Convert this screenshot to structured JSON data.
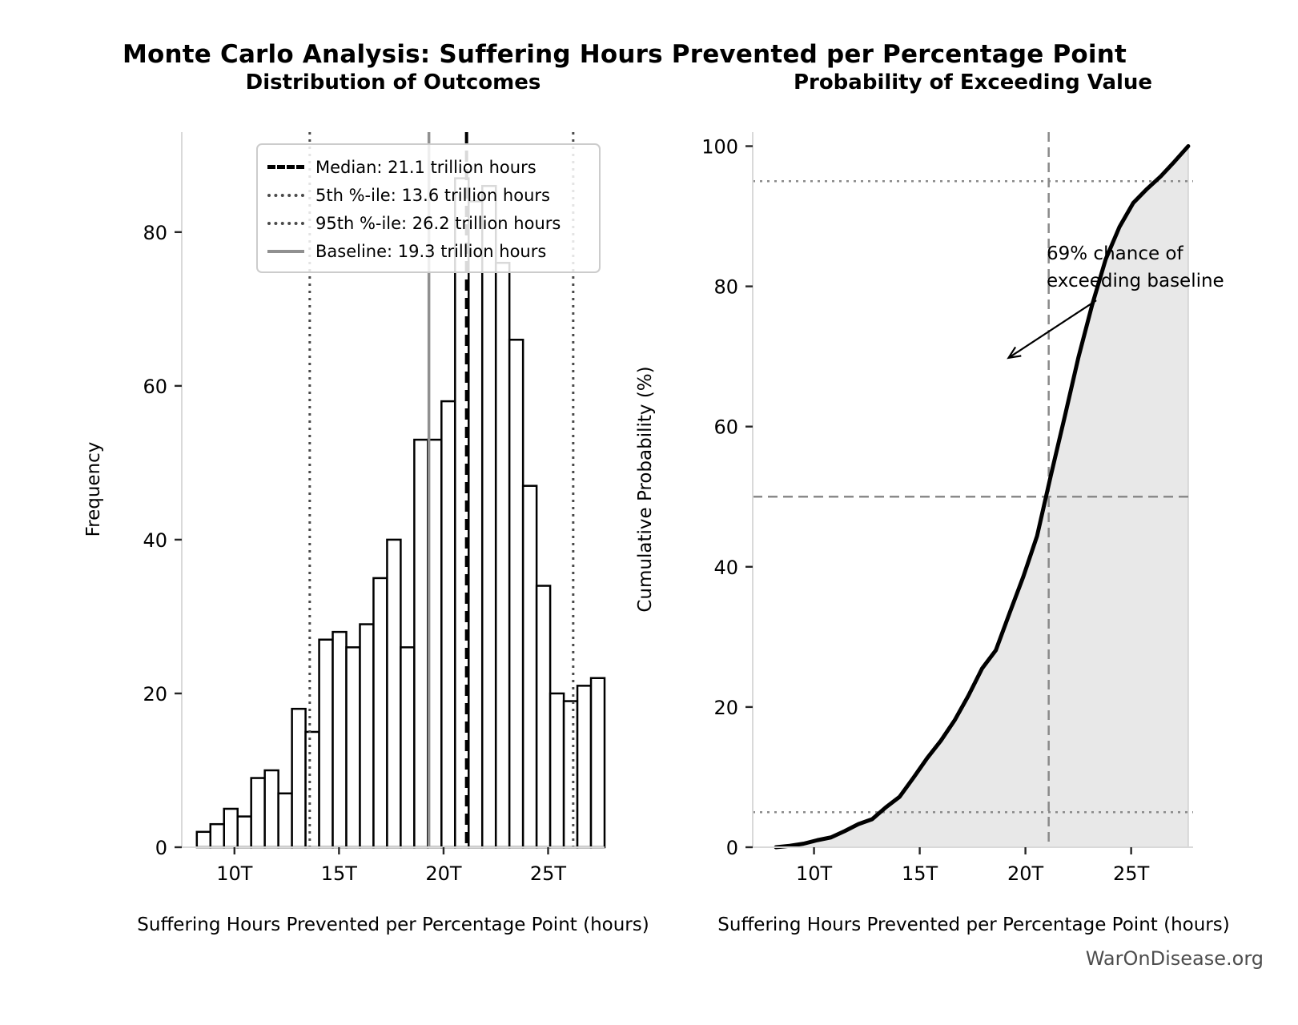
{
  "suptitle": "Monte Carlo Analysis: Suffering Hours Prevented per Percentage Point",
  "watermark": "WarOnDisease.org",
  "chart_data": [
    {
      "type": "bar",
      "title": "Distribution of Outcomes",
      "xlabel": "Suffering Hours Prevented per Percentage Point (hours)",
      "ylabel": "Frequency",
      "unit": "trillion hours",
      "bin_start": 8.2,
      "bin_width": 0.65,
      "values": [
        2,
        3,
        5,
        4,
        9,
        10,
        7,
        18,
        15,
        27,
        28,
        26,
        29,
        35,
        40,
        26,
        53,
        53,
        58,
        87,
        84,
        86,
        76,
        66,
        47,
        34,
        20,
        19,
        21,
        22
      ],
      "xlim": [
        7.48,
        27.7
      ],
      "ylim": [
        0,
        93
      ],
      "xticks": [
        10,
        15,
        20,
        25
      ],
      "xtick_labels": [
        "10T",
        "15T",
        "20T",
        "25T"
      ],
      "yticks": [
        0,
        20,
        40,
        60,
        80
      ],
      "grid": false,
      "legend_position": "upper left",
      "ref_lines": [
        {
          "name": "median",
          "value": 21.1,
          "style": "dashed-black",
          "legend": "Median: 21.1 trillion hours"
        },
        {
          "name": "p5",
          "value": 13.6,
          "style": "dotted-dark",
          "legend": "5th %-ile: 13.6 trillion hours"
        },
        {
          "name": "p95",
          "value": 26.2,
          "style": "dotted-dark",
          "legend": "95th %-ile: 26.2 trillion hours"
        },
        {
          "name": "baseline",
          "value": 19.3,
          "style": "solid-gray",
          "legend": "Baseline: 19.3 trillion hours"
        }
      ]
    },
    {
      "type": "line",
      "title": "Probability of Exceeding Value",
      "xlabel": "Suffering Hours Prevented per Percentage Point (hours)",
      "ylabel": "Cumulative Probability (%)",
      "x": [
        8.2,
        8.85,
        9.5,
        10.15,
        10.8,
        11.45,
        12.1,
        12.75,
        13.4,
        14.05,
        14.7,
        15.35,
        16.0,
        16.65,
        17.3,
        17.95,
        18.6,
        19.25,
        19.9,
        20.55,
        21.2,
        21.85,
        22.5,
        23.15,
        23.8,
        24.45,
        25.1,
        25.75,
        26.4,
        27.05,
        27.7
      ],
      "y": [
        0,
        0.2,
        0.5,
        1.0,
        1.4,
        2.3,
        3.3,
        4.0,
        5.7,
        7.2,
        9.9,
        12.7,
        15.2,
        18.1,
        21.6,
        25.5,
        28.1,
        33.4,
        38.6,
        44.4,
        53.0,
        61.3,
        69.8,
        77.3,
        83.9,
        88.5,
        91.9,
        93.9,
        95.7,
        97.8,
        100
      ],
      "fill_under_curve": true,
      "xlim": [
        7.1,
        27.93
      ],
      "ylim": [
        0,
        102
      ],
      "xticks": [
        10,
        15,
        20,
        25
      ],
      "xtick_labels": [
        "10T",
        "15T",
        "20T",
        "25T"
      ],
      "yticks": [
        0,
        20,
        40,
        60,
        80,
        100
      ],
      "h_dotted": [
        5,
        95
      ],
      "h_dashed": [
        50
      ],
      "v_dashed": [
        21.1
      ],
      "annotation": {
        "line1": "69% chance of",
        "line2": "exceeding baseline",
        "arrow_from": [
          23.35,
          78.0
        ],
        "arrow_to": [
          19.2,
          69.8
        ]
      }
    }
  ]
}
